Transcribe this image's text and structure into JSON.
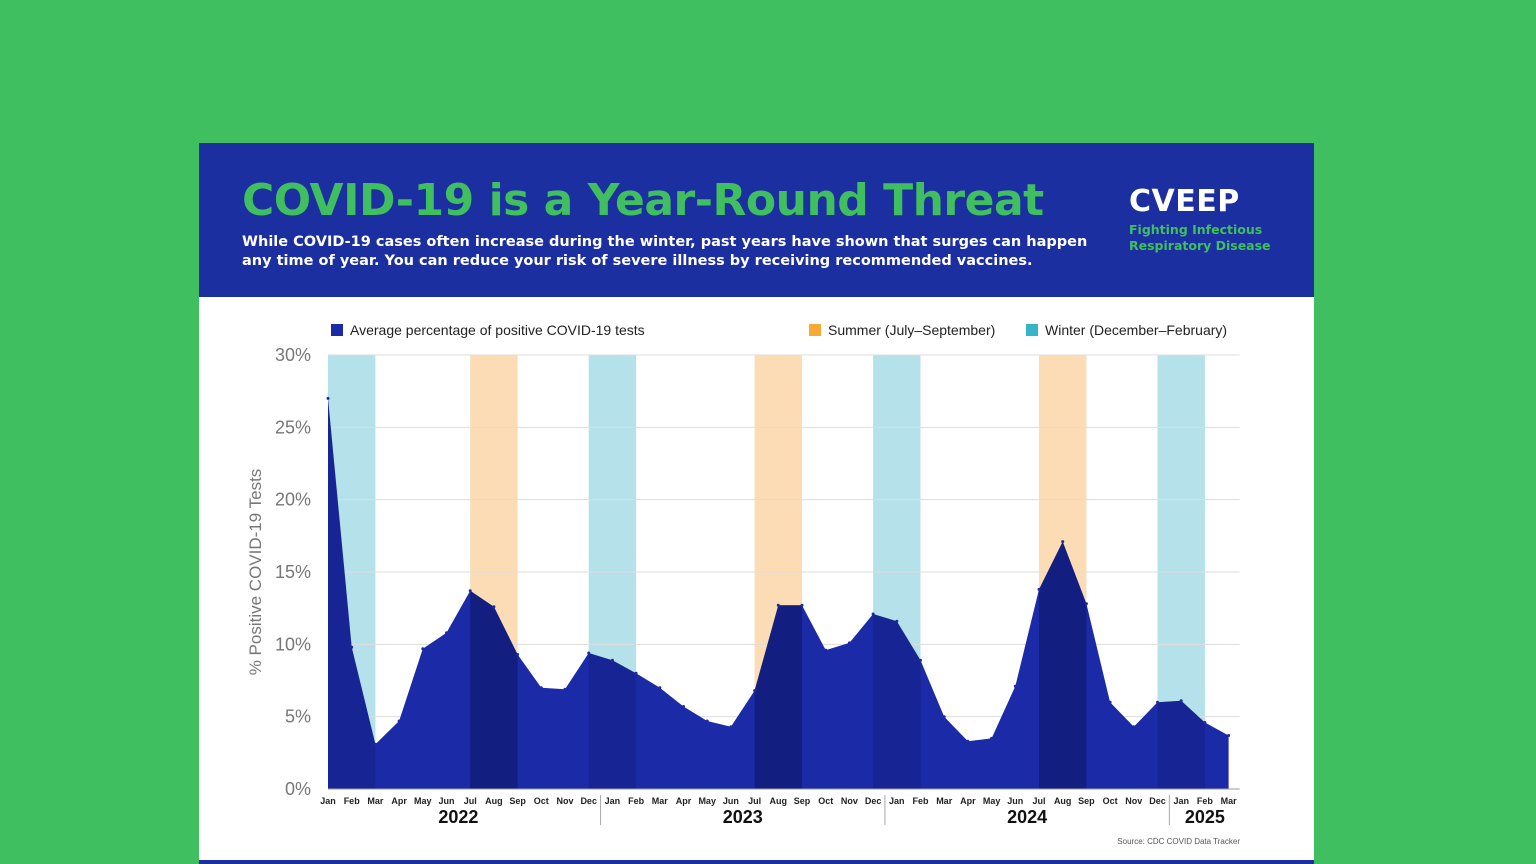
{
  "header": {
    "title": "COVID-19 is a Year-Round Threat",
    "subtitle": "While COVID-19 cases often increase during the winter, past years have shown that surges can happen any time of year. You can reduce your risk of severe illness by receiving recommended vaccines.",
    "brand_name": "CVEEP",
    "brand_tagline": "Fighting Infectious\nRespiratory Disease"
  },
  "colors": {
    "background": "#3fbf5f",
    "header": "#1c2fa0",
    "series": "#1b2aa6",
    "summer": "#fbdcb4",
    "summer_legend": "#f6a935",
    "winter": "#b5e1ea",
    "winter_legend": "#36b5c8"
  },
  "chart_data": {
    "type": "area",
    "ylabel": "% Positive COVID-19 Tests",
    "ylim": [
      0,
      30
    ],
    "y_ticks": [
      "0%",
      "5%",
      "10%",
      "15%",
      "20%",
      "25%",
      "30%"
    ],
    "grid": true,
    "legend_position": "top",
    "legend": {
      "series": "Average percentage of positive COVID-19 tests",
      "summer": "Summer (July–September)",
      "winter": "Winter (December–February)"
    },
    "month_labels": [
      "Jan",
      "Feb",
      "Mar",
      "Apr",
      "May",
      "Jun",
      "Jul",
      "Aug",
      "Sep",
      "Oct",
      "Nov",
      "Dec",
      "Jan",
      "Feb",
      "Mar",
      "Apr",
      "May",
      "Jun",
      "Jul",
      "Aug",
      "Sep",
      "Oct",
      "Nov",
      "Dec",
      "Jan",
      "Feb",
      "Mar",
      "Apr",
      "May",
      "Jun",
      "Jul",
      "Aug",
      "Sep",
      "Oct",
      "Nov",
      "Dec",
      "Jan",
      "Feb",
      "Mar"
    ],
    "years": [
      {
        "label": "2022",
        "first_month": 0,
        "last_month": 11
      },
      {
        "label": "2023",
        "first_month": 12,
        "last_month": 23
      },
      {
        "label": "2024",
        "first_month": 24,
        "last_month": 35
      },
      {
        "label": "2025",
        "first_month": 36,
        "last_month": 38
      }
    ],
    "series": [
      {
        "name": "Average percentage of positive COVID-19 tests",
        "values": [
          27.0,
          9.8,
          3.1,
          4.7,
          9.7,
          10.8,
          13.7,
          12.6,
          9.3,
          7.0,
          6.9,
          9.4,
          8.9,
          8.0,
          7.0,
          5.7,
          4.7,
          4.3,
          6.8,
          12.7,
          12.7,
          9.6,
          10.1,
          12.1,
          11.6,
          8.9,
          5.0,
          3.3,
          3.5,
          7.1,
          13.8,
          17.1,
          12.8,
          6.0,
          4.3,
          6.0,
          6.1,
          4.6,
          3.7
        ]
      }
    ],
    "season_bands": [
      {
        "season": "winter",
        "start": 0,
        "end": 2
      },
      {
        "season": "summer",
        "start": 6,
        "end": 8
      },
      {
        "season": "winter",
        "start": 11,
        "end": 13
      },
      {
        "season": "summer",
        "start": 18,
        "end": 20
      },
      {
        "season": "winter",
        "start": 23,
        "end": 25
      },
      {
        "season": "summer",
        "start": 30,
        "end": 32
      },
      {
        "season": "winter",
        "start": 35,
        "end": 37
      }
    ],
    "source": "Source: CDC COVID Data Tracker"
  }
}
